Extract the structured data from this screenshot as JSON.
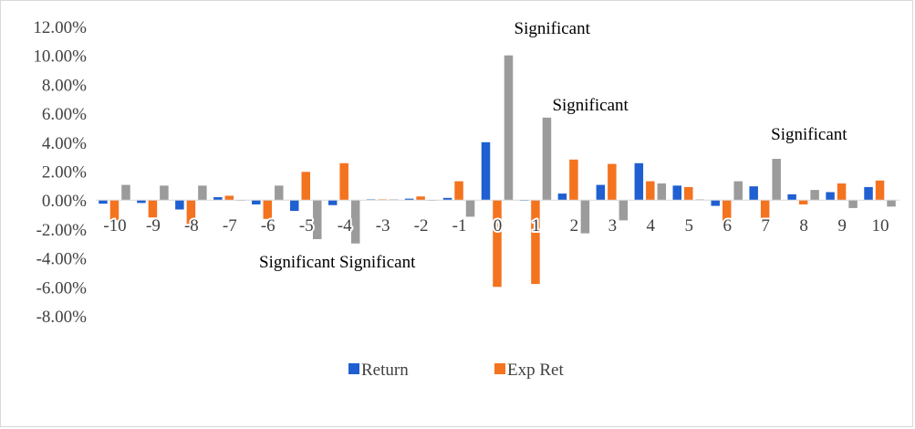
{
  "chart_data": {
    "type": "bar",
    "categories": [
      "-10",
      "-9",
      "-8",
      "-7",
      "-6",
      "-5",
      "-4",
      "-3",
      "-2",
      "-1",
      "0",
      "1",
      "2",
      "3",
      "4",
      "5",
      "6",
      "7",
      "8",
      "9",
      "10"
    ],
    "series": [
      {
        "name": "Return",
        "color": "#1f5fd1",
        "values": [
          -0.25,
          -0.2,
          -0.65,
          0.2,
          -0.3,
          -0.75,
          -0.35,
          0.05,
          0.1,
          0.15,
          4.0,
          0.0,
          0.45,
          1.05,
          2.55,
          1.0,
          -0.4,
          0.95,
          0.4,
          0.55,
          0.9
        ]
      },
      {
        "name": "Exp Ret",
        "color": "#f4731f",
        "values": [
          -1.4,
          -1.2,
          -1.65,
          0.3,
          -1.3,
          1.95,
          2.55,
          0.05,
          0.25,
          1.3,
          -6.0,
          -5.8,
          2.8,
          2.5,
          1.3,
          0.9,
          -1.7,
          -1.5,
          -0.3,
          1.15,
          1.35
        ]
      },
      {
        "name": "",
        "color": "#9b9b9b",
        "values": [
          1.05,
          1.0,
          1.0,
          -0.05,
          1.0,
          -2.7,
          -3.0,
          0.05,
          -0.05,
          -1.15,
          10.0,
          5.7,
          -2.3,
          -1.4,
          1.15,
          0.05,
          1.3,
          2.85,
          0.7,
          -0.55,
          -0.45
        ]
      }
    ],
    "ylim": [
      -8,
      12
    ],
    "yticks": [
      "12.00%",
      "10.00%",
      "8.00%",
      "6.00%",
      "4.00%",
      "2.00%",
      "0.00%",
      "-2.00%",
      "-4.00%",
      "-6.00%",
      "-8.00%"
    ],
    "annotations": [
      {
        "text": "Significant",
        "category": "0",
        "series": 2
      },
      {
        "text": "Significant",
        "category": "1",
        "series": 2
      },
      {
        "text": "Significant",
        "category": "7",
        "series": 2
      },
      {
        "text": "Significant",
        "category": "-5",
        "series": 2
      },
      {
        "text": "Significant",
        "category": "-4",
        "series": 2
      }
    ],
    "legend": {
      "position": "bottom",
      "entries": [
        "Return",
        "Exp Ret"
      ]
    },
    "grid": false
  }
}
